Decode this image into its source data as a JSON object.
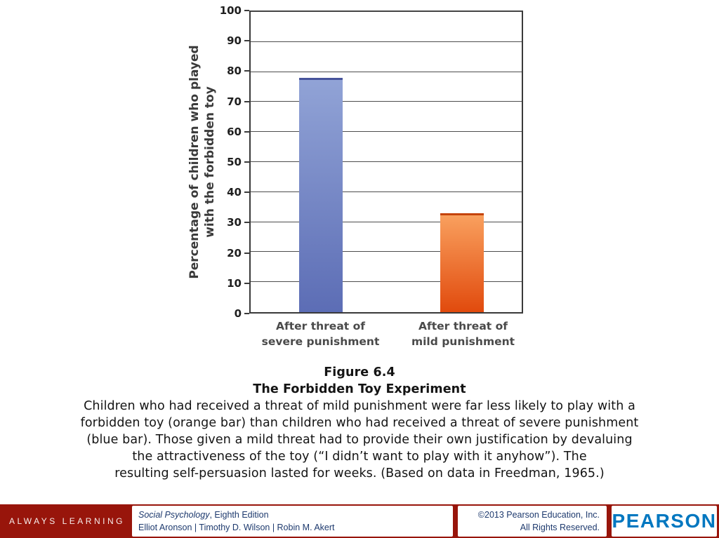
{
  "chart_data": {
    "type": "bar",
    "categories": [
      "After threat of severe punishment",
      "After threat of mild punishment"
    ],
    "values": [
      78,
      33
    ],
    "title": "",
    "xlabel": "",
    "ylabel": "Percentage of children who played with the forbidden toy",
    "ylim": [
      0,
      100
    ],
    "ytick_step": 10,
    "grid": true,
    "legend": false,
    "bar_colors": [
      "#6b7dbf",
      "#ec6a24"
    ]
  },
  "chart": {
    "y_title_line1": "Percentage of children who played",
    "y_title_line2": "with the forbidden toy",
    "ymin": 0,
    "ymax": 100,
    "ytick_step": 10,
    "bars": [
      {
        "name": "severe",
        "value": 78,
        "label_line1": "After threat of",
        "label_line2": "severe punishment",
        "color_top": "#91a3d6",
        "color_bottom": "#5c6db5",
        "color_cap": "#47549c"
      },
      {
        "name": "mild",
        "value": 33,
        "label_line1": "After threat of",
        "label_line2": "mild punishment",
        "color_top": "#f9a05e",
        "color_bottom": "#e14a0d",
        "color_cap": "#c44309"
      }
    ]
  },
  "caption": {
    "figure_label": "Figure 6.4",
    "figure_title": "The Forbidden Toy Experiment",
    "lines": [
      "Children who had received a threat of mild punishment were far less likely to play with a",
      "forbidden toy (orange bar) than children who had received a threat of severe punishment",
      "(blue bar). Those given a mild threat had to provide their own justification by devaluing",
      "the attractiveness of the toy (“I didn’t want to play with it anyhow”). The",
      "resulting self-persuasion lasted for weeks. (Based on data in Freedman, 1965.)"
    ]
  },
  "footer": {
    "always_learning": "ALWAYS LEARNING",
    "book_title_italic": "Social Psychology",
    "book_title_rest": ", Eighth Edition",
    "authors": "Elliot Aronson | Timothy D. Wilson | Robin M. Akert",
    "copyright_line1": "©2013 Pearson Education, Inc.",
    "copyright_line2": "All Rights Reserved.",
    "pearson_logo": "PEARSON"
  }
}
